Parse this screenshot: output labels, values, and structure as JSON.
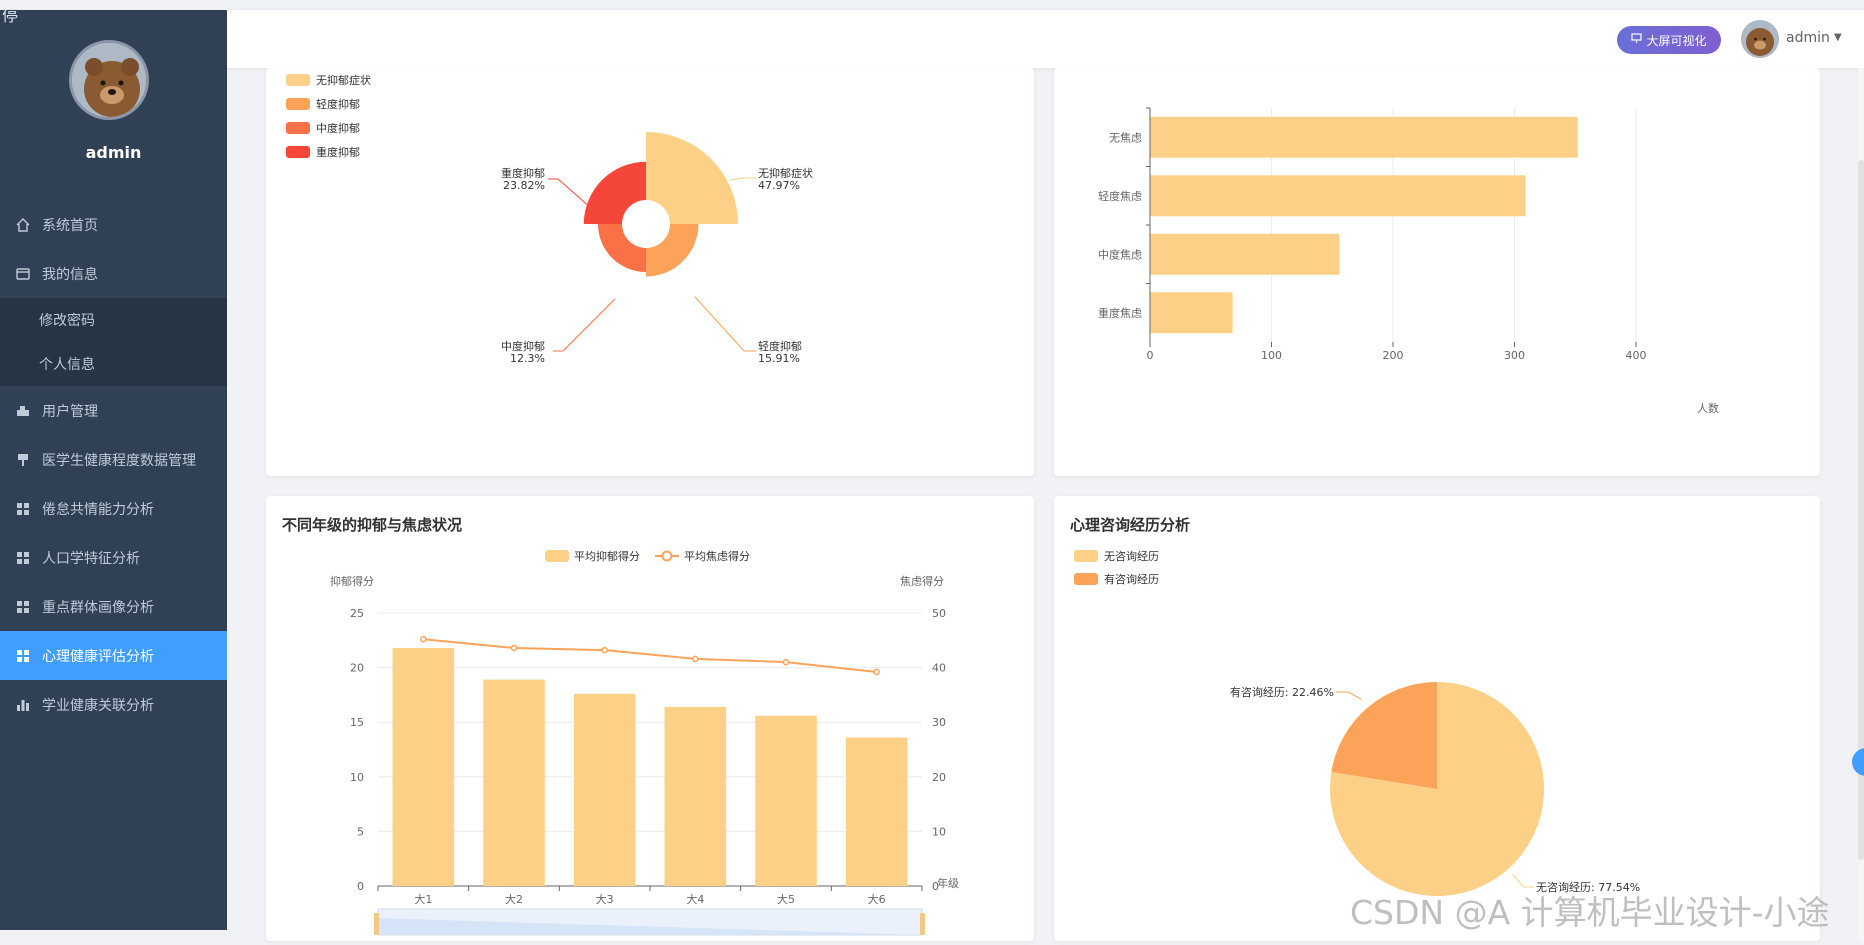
{
  "sidebar": {
    "corner_glyph": "停",
    "user": "admin",
    "menu": [
      {
        "label": "系统首页",
        "icon": "home-icon",
        "type": "item"
      },
      {
        "label": "我的信息",
        "icon": "wallet-icon",
        "type": "item"
      },
      {
        "label": "修改密码",
        "icon": "",
        "type": "sub"
      },
      {
        "label": "个人信息",
        "icon": "",
        "type": "sub"
      },
      {
        "label": "用户管理",
        "icon": "user-manage-icon",
        "type": "item"
      },
      {
        "label": "医学生健康程度数据管理",
        "icon": "brush-icon",
        "type": "item"
      },
      {
        "label": "倦怠共情能力分析",
        "icon": "grid-icon",
        "type": "item"
      },
      {
        "label": "人口学特征分析",
        "icon": "grid-icon",
        "type": "item"
      },
      {
        "label": "重点群体画像分析",
        "icon": "grid-icon",
        "type": "item"
      },
      {
        "label": "心理健康评估分析",
        "icon": "grid-icon",
        "type": "active"
      },
      {
        "label": "学业健康关联分析",
        "icon": "bar-chart-icon",
        "type": "item"
      }
    ]
  },
  "header": {
    "bigscreen_label": "大屏可视化",
    "user": "admin"
  },
  "colors": {
    "sidebar_bg": "#304156",
    "active": "#409eff",
    "c1": "#fcd086",
    "c2": "#fca35a",
    "c3": "#fa7047",
    "c4": "#f5463a"
  },
  "charts": {
    "depression": {
      "legend": [
        "无抑郁症状",
        "轻度抑郁",
        "中度抑郁",
        "重度抑郁"
      ],
      "labels": [
        {
          "name": "无抑郁症状",
          "pct": "47.97%"
        },
        {
          "name": "轻度抑郁",
          "pct": "15.91%"
        },
        {
          "name": "中度抑郁",
          "pct": "12.3%"
        },
        {
          "name": "重度抑郁",
          "pct": "23.82%"
        }
      ]
    },
    "anxiety": {
      "categories": [
        "无焦虑",
        "轻度焦虑",
        "中度焦虑",
        "重度焦虑"
      ],
      "ticks": [
        "0",
        "100",
        "200",
        "300",
        "400"
      ],
      "axis_name": "人数"
    },
    "grade": {
      "title": "不同年级的抑郁与焦虑状况",
      "legend_bar": "平均抑郁得分",
      "legend_line": "平均焦虑得分",
      "y_left_name": "抑郁得分",
      "y_right_name": "焦虑得分",
      "x_name": "年级",
      "left_ticks": [
        "25",
        "20",
        "15",
        "10",
        "5",
        "0"
      ],
      "right_ticks": [
        "50",
        "40",
        "30",
        "20",
        "10",
        "0"
      ]
    },
    "consult": {
      "title": "心理咨询经历分析",
      "legend": [
        "无咨询经历",
        "有咨询经历"
      ],
      "label_yes": "有咨询经历: 22.46%",
      "label_no": "无咨询经历: 77.54%"
    }
  },
  "chart_data": [
    {
      "type": "pie",
      "title": "",
      "categories": [
        "无抑郁症状",
        "轻度抑郁",
        "中度抑郁",
        "重度抑郁"
      ],
      "values": [
        47.97,
        15.91,
        12.3,
        23.82
      ]
    },
    {
      "type": "bar",
      "title": "",
      "categories": [
        "无焦虑",
        "轻度焦虑",
        "中度焦虑",
        "重度焦虑"
      ],
      "values": [
        352,
        309,
        156,
        68
      ],
      "xlabel": "人数",
      "xlim": [
        0,
        400
      ]
    },
    {
      "type": "bar",
      "title": "不同年级的抑郁与焦虑状况",
      "categories": [
        "大1",
        "大2",
        "大3",
        "大4",
        "大5",
        "大6"
      ],
      "series": [
        {
          "name": "平均抑郁得分",
          "values": [
            21.8,
            18.9,
            17.6,
            16.4,
            15.6,
            13.6
          ],
          "axis": "left",
          "type": "bar"
        },
        {
          "name": "平均焦虑得分",
          "values": [
            45.2,
            43.6,
            43.2,
            41.6,
            41.0,
            39.2
          ],
          "axis": "right",
          "type": "line"
        }
      ],
      "xlabel": "年级",
      "ylabel": "抑郁得分",
      "ylabel_right": "焦虑得分",
      "ylim": [
        0,
        25
      ],
      "ylim_right": [
        0,
        50
      ]
    },
    {
      "type": "pie",
      "title": "心理咨询经历分析",
      "categories": [
        "无咨询经历",
        "有咨询经历"
      ],
      "values": [
        77.54,
        22.46
      ]
    }
  ],
  "watermark": "CSDN @A 计算机毕业设计-小途"
}
